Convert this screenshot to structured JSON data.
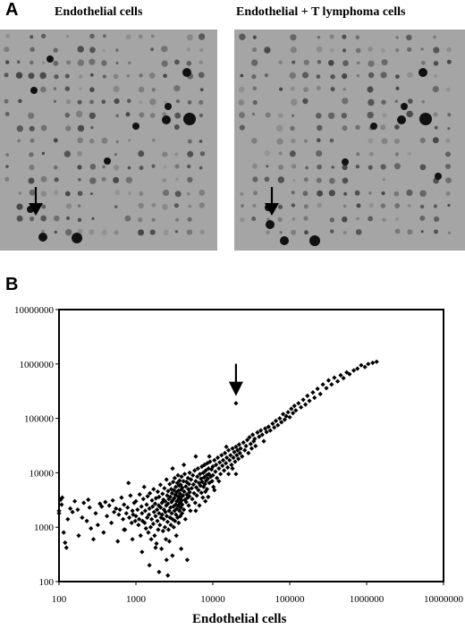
{
  "figure": {
    "panel_a_label": "A",
    "panel_b_label": "B",
    "blot_left_title": "Endothelial cells",
    "blot_right_title": "Endothelial + T lymphoma cells"
  },
  "chart_data": {
    "type": "scatter",
    "title": "",
    "xlabel": "Endothelial cells",
    "ylabel": "",
    "x_scale": "log",
    "y_scale": "log",
    "xlim": [
      100,
      10000000
    ],
    "ylim": [
      100,
      10000000
    ],
    "x_ticks": [
      "100",
      "1000",
      "10000",
      "100000",
      "1000000",
      "10000000"
    ],
    "y_ticks": [
      "100",
      "1000",
      "10000",
      "100000",
      "1000000",
      "10000000"
    ],
    "grid": false,
    "legend": "none",
    "marker": "diamond",
    "annotation": {
      "type": "arrow",
      "points_to": [
        20000,
        190000
      ]
    },
    "points": [
      [
        100,
        2000
      ],
      [
        100,
        1800
      ],
      [
        105,
        3200
      ],
      [
        110,
        3500
      ],
      [
        108,
        2600
      ],
      [
        115,
        800
      ],
      [
        120,
        520
      ],
      [
        125,
        420
      ],
      [
        130,
        1400
      ],
      [
        140,
        2200
      ],
      [
        150,
        1900
      ],
      [
        160,
        3000
      ],
      [
        175,
        2100
      ],
      [
        180,
        700
      ],
      [
        200,
        1500
      ],
      [
        210,
        2800
      ],
      [
        230,
        1300
      ],
      [
        240,
        3200
      ],
      [
        250,
        2300
      ],
      [
        260,
        950
      ],
      [
        280,
        600
      ],
      [
        300,
        1800
      ],
      [
        320,
        1100
      ],
      [
        340,
        2700
      ],
      [
        360,
        2400
      ],
      [
        380,
        800
      ],
      [
        400,
        2900
      ],
      [
        420,
        1600
      ],
      [
        450,
        2500
      ],
      [
        480,
        1200
      ],
      [
        500,
        3100
      ],
      [
        520,
        1900
      ],
      [
        550,
        2200
      ],
      [
        580,
        550
      ],
      [
        600,
        1700
      ],
      [
        620,
        2100
      ],
      [
        650,
        3500
      ],
      [
        680,
        1400
      ],
      [
        700,
        2600
      ],
      [
        720,
        900
      ],
      [
        750,
        1800
      ],
      [
        780,
        2300
      ],
      [
        800,
        6500
      ],
      [
        820,
        1500
      ],
      [
        850,
        3800
      ],
      [
        880,
        1200
      ],
      [
        900,
        2000
      ],
      [
        920,
        1700
      ],
      [
        950,
        2800
      ],
      [
        980,
        1300
      ],
      [
        1000,
        3000
      ],
      [
        1000,
        1600
      ],
      [
        1050,
        2100
      ],
      [
        1080,
        1100
      ],
      [
        1100,
        1400
      ],
      [
        1120,
        4000
      ],
      [
        1150,
        700
      ],
      [
        1180,
        2400
      ],
      [
        1200,
        1800
      ],
      [
        1220,
        1300
      ],
      [
        1250,
        3300
      ],
      [
        1280,
        5500
      ],
      [
        1300,
        1200
      ],
      [
        1320,
        2000
      ],
      [
        1350,
        950
      ],
      [
        1380,
        2600
      ],
      [
        1400,
        1500
      ],
      [
        1420,
        3700
      ],
      [
        1450,
        800
      ],
      [
        1480,
        1700
      ],
      [
        1500,
        2200
      ],
      [
        1520,
        4200
      ],
      [
        1550,
        1000
      ],
      [
        1580,
        600
      ],
      [
        1600,
        1400
      ],
      [
        1620,
        3100
      ],
      [
        1650,
        2400
      ],
      [
        1680,
        1150
      ],
      [
        1700,
        5000
      ],
      [
        1720,
        1900
      ],
      [
        1750,
        700
      ],
      [
        1780,
        2700
      ],
      [
        1800,
        1600
      ],
      [
        1820,
        3400
      ],
      [
        1850,
        500
      ],
      [
        1880,
        2100
      ],
      [
        1900,
        1300
      ],
      [
        1920,
        4500
      ],
      [
        1950,
        900
      ],
      [
        1980,
        2500
      ],
      [
        2000,
        1800
      ],
      [
        2000,
        3600
      ],
      [
        2050,
        1100
      ],
      [
        2080,
        6000
      ],
      [
        2100,
        2300
      ],
      [
        2120,
        1500
      ],
      [
        2150,
        400
      ],
      [
        2180,
        2800
      ],
      [
        2200,
        1700
      ],
      [
        2220,
        4100
      ],
      [
        2250,
        850
      ],
      [
        2280,
        3200
      ],
      [
        2300,
        1400
      ],
      [
        2320,
        2100
      ],
      [
        2350,
        5200
      ],
      [
        2380,
        1000
      ],
      [
        2400,
        3000
      ],
      [
        2420,
        1900
      ],
      [
        2450,
        600
      ],
      [
        2480,
        2500
      ],
      [
        2500,
        7500
      ],
      [
        2520,
        1600
      ],
      [
        2550,
        3800
      ],
      [
        2580,
        1250
      ],
      [
        2600,
        2700
      ],
      [
        2620,
        4600
      ],
      [
        2650,
        900
      ],
      [
        2680,
        3300
      ],
      [
        2700,
        2000
      ],
      [
        2720,
        550
      ],
      [
        2750,
        6200
      ],
      [
        2780,
        1500
      ],
      [
        2800,
        3600
      ],
      [
        2820,
        2300
      ],
      [
        2850,
        1100
      ],
      [
        2880,
        5000
      ],
      [
        2900,
        2900
      ],
      [
        2920,
        1800
      ],
      [
        2950,
        4200
      ],
      [
        2980,
        300
      ],
      [
        3000,
        3100
      ],
      [
        3000,
        1400
      ],
      [
        3050,
        6800
      ],
      [
        3080,
        2400
      ],
      [
        3100,
        1000
      ],
      [
        3120,
        4800
      ],
      [
        3150,
        3400
      ],
      [
        3180,
        2000
      ],
      [
        3200,
        8000
      ],
      [
        3220,
        1300
      ],
      [
        3250,
        3900
      ],
      [
        3280,
        2600
      ],
      [
        3300,
        5500
      ],
      [
        3320,
        1700
      ],
      [
        3350,
        700
      ],
      [
        3380,
        4400
      ],
      [
        3400,
        3000
      ],
      [
        3420,
        2200
      ],
      [
        3450,
        6500
      ],
      [
        3480,
        1500
      ],
      [
        3500,
        3700
      ],
      [
        3520,
        9000
      ],
      [
        3550,
        2500
      ],
      [
        3580,
        4700
      ],
      [
        3600,
        1200
      ],
      [
        3620,
        3300
      ],
      [
        3650,
        5800
      ],
      [
        3680,
        2000
      ],
      [
        3700,
        7200
      ],
      [
        3720,
        2800
      ],
      [
        3750,
        4100
      ],
      [
        3780,
        1600
      ],
      [
        3800,
        3500
      ],
      [
        3820,
        6000
      ],
      [
        3850,
        2300
      ],
      [
        3880,
        400
      ],
      [
        3900,
        4900
      ],
      [
        3920,
        8500
      ],
      [
        3950,
        3100
      ],
      [
        3980,
        1800
      ],
      [
        4000,
        5300
      ],
      [
        4000,
        2600
      ],
      [
        4100,
        3800
      ],
      [
        4150,
        7000
      ],
      [
        4200,
        2100
      ],
      [
        4250,
        4500
      ],
      [
        4300,
        9500
      ],
      [
        4350,
        3200
      ],
      [
        4400,
        1400
      ],
      [
        4450,
        5600
      ],
      [
        4500,
        2900
      ],
      [
        4550,
        6800
      ],
      [
        4600,
        4000
      ],
      [
        4650,
        250
      ],
      [
        4700,
        3500
      ],
      [
        4750,
        8000
      ],
      [
        4800,
        5000
      ],
      [
        4850,
        2500
      ],
      [
        4900,
        6200
      ],
      [
        4950,
        3700
      ],
      [
        5000,
        10000
      ],
      [
        5000,
        4400
      ],
      [
        5100,
        2000
      ],
      [
        5200,
        7500
      ],
      [
        5300,
        5200
      ],
      [
        5400,
        3300
      ],
      [
        5500,
        9000
      ],
      [
        5600,
        6100
      ],
      [
        5700,
        4200
      ],
      [
        5800,
        11000
      ],
      [
        5900,
        2800
      ],
      [
        6000,
        7000
      ],
      [
        6100,
        5400
      ],
      [
        6200,
        3800
      ],
      [
        6300,
        8500
      ],
      [
        6400,
        12000
      ],
      [
        6500,
        4800
      ],
      [
        6600,
        6500
      ],
      [
        6700,
        2500
      ],
      [
        6800,
        9500
      ],
      [
        6900,
        5800
      ],
      [
        7000,
        7800
      ],
      [
        7100,
        4300
      ],
      [
        7200,
        13000
      ],
      [
        7300,
        6800
      ],
      [
        7400,
        3500
      ],
      [
        7500,
        10000
      ],
      [
        7600,
        5500
      ],
      [
        7700,
        8200
      ],
      [
        7800,
        14000
      ],
      [
        7900,
        6200
      ],
      [
        8000,
        4500
      ],
      [
        8100,
        11000
      ],
      [
        8200,
        7200
      ],
      [
        8300,
        9000
      ],
      [
        8400,
        5000
      ],
      [
        8500,
        15000
      ],
      [
        8600,
        7800
      ],
      [
        8700,
        3600
      ],
      [
        8800,
        12000
      ],
      [
        8900,
        9500
      ],
      [
        9000,
        6500
      ],
      [
        9200,
        16000
      ],
      [
        9400,
        8500
      ],
      [
        9600,
        11500
      ],
      [
        9800,
        7000
      ],
      [
        10000,
        13000
      ],
      [
        10000,
        9000
      ],
      [
        10200,
        5500
      ],
      [
        10500,
        17000
      ],
      [
        10800,
        10500
      ],
      [
        11000,
        14000
      ],
      [
        11300,
        8000
      ],
      [
        11600,
        19000
      ],
      [
        12000,
        12000
      ],
      [
        12300,
        15500
      ],
      [
        12600,
        9500
      ],
      [
        13000,
        21000
      ],
      [
        13300,
        13500
      ],
      [
        13600,
        17000
      ],
      [
        14000,
        11000
      ],
      [
        14400,
        23000
      ],
      [
        14800,
        15000
      ],
      [
        15200,
        19000
      ],
      [
        15600,
        12500
      ],
      [
        16000,
        26000
      ],
      [
        16500,
        17000
      ],
      [
        17000,
        21000
      ],
      [
        17500,
        14000
      ],
      [
        18000,
        28000
      ],
      [
        18500,
        19000
      ],
      [
        19000,
        24000
      ],
      [
        19500,
        16000
      ],
      [
        20000,
        190000
      ],
      [
        20000,
        30000
      ],
      [
        20500,
        21000
      ],
      [
        21000,
        26000
      ],
      [
        21500,
        18000
      ],
      [
        22000,
        33000
      ],
      [
        22500,
        23000
      ],
      [
        23000,
        28000
      ],
      [
        24000,
        20000
      ],
      [
        25000,
        36000
      ],
      [
        26000,
        26000
      ],
      [
        27000,
        31000
      ],
      [
        28000,
        40000
      ],
      [
        29000,
        23000
      ],
      [
        30000,
        45000
      ],
      [
        31000,
        34000
      ],
      [
        32000,
        28000
      ],
      [
        33000,
        50000
      ],
      [
        34000,
        38000
      ],
      [
        35000,
        42000
      ],
      [
        36000,
        31000
      ],
      [
        38000,
        55000
      ],
      [
        40000,
        46000
      ],
      [
        42000,
        60000
      ],
      [
        44000,
        50000
      ],
      [
        46000,
        38000
      ],
      [
        48000,
        65000
      ],
      [
        50000,
        56000
      ],
      [
        53000,
        70000
      ],
      [
        56000,
        60000
      ],
      [
        60000,
        80000
      ],
      [
        63000,
        68000
      ],
      [
        66000,
        90000
      ],
      [
        70000,
        75000
      ],
      [
        74000,
        100000
      ],
      [
        78000,
        85000
      ],
      [
        82000,
        120000
      ],
      [
        86000,
        95000
      ],
      [
        90000,
        110000
      ],
      [
        95000,
        130000
      ],
      [
        100000,
        105000
      ],
      [
        105000,
        150000
      ],
      [
        110000,
        125000
      ],
      [
        115000,
        170000
      ],
      [
        120000,
        140000
      ],
      [
        130000,
        190000
      ],
      [
        140000,
        160000
      ],
      [
        150000,
        220000
      ],
      [
        160000,
        180000
      ],
      [
        170000,
        260000
      ],
      [
        180000,
        210000
      ],
      [
        200000,
        300000
      ],
      [
        210000,
        240000
      ],
      [
        230000,
        350000
      ],
      [
        250000,
        280000
      ],
      [
        270000,
        420000
      ],
      [
        300000,
        360000
      ],
      [
        320000,
        500000
      ],
      [
        350000,
        420000
      ],
      [
        380000,
        560000
      ],
      [
        420000,
        480000
      ],
      [
        460000,
        620000
      ],
      [
        500000,
        550000
      ],
      [
        550000,
        700000
      ],
      [
        600000,
        650000
      ],
      [
        680000,
        760000
      ],
      [
        760000,
        820000
      ],
      [
        850000,
        950000
      ],
      [
        950000,
        880000
      ],
      [
        1050000,
        1000000
      ],
      [
        1200000,
        1050000
      ],
      [
        1350000,
        1100000
      ],
      [
        20000,
        9500
      ],
      [
        18000,
        12000
      ],
      [
        9000,
        20000
      ],
      [
        6000,
        20000
      ],
      [
        15000,
        30000
      ],
      [
        16000,
        9500
      ],
      [
        4200,
        14000
      ],
      [
        3000,
        12000
      ],
      [
        12000,
        7000
      ],
      [
        8000,
        3000
      ],
      [
        10500,
        4800
      ],
      [
        6000,
        2000
      ],
      [
        700,
        900
      ],
      [
        2000,
        150
      ],
      [
        2500,
        250
      ],
      [
        1500,
        200
      ],
      [
        1800,
        420
      ],
      [
        1200,
        350
      ],
      [
        900,
        600
      ],
      [
        2600,
        130
      ]
    ]
  }
}
